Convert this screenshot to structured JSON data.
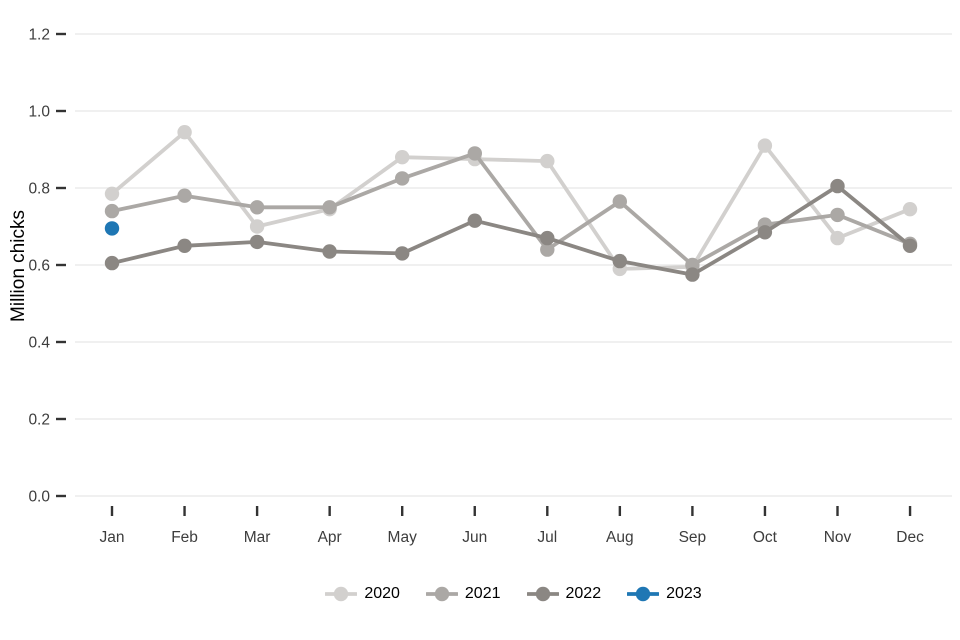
{
  "chart_data": {
    "type": "line",
    "title": "",
    "xlabel": "",
    "ylabel": "Million chicks",
    "categories": [
      "Jan",
      "Feb",
      "Mar",
      "Apr",
      "May",
      "Jun",
      "Jul",
      "Aug",
      "Sep",
      "Oct",
      "Nov",
      "Dec"
    ],
    "yticks": [
      "0.0",
      "0.2",
      "0.4",
      "0.6",
      "0.8",
      "1.0",
      "1.2"
    ],
    "ylim": [
      0,
      1.25
    ],
    "grid": "horizontal-major-only",
    "legend_position": "bottom-center",
    "marker": "filled-circle",
    "series": [
      {
        "name": "2020",
        "color": "#d2d0ce",
        "values": [
          0.785,
          0.945,
          0.7,
          0.745,
          0.88,
          0.875,
          0.87,
          0.59,
          0.595,
          0.91,
          0.67,
          0.745
        ]
      },
      {
        "name": "2021",
        "color": "#aba8a5",
        "values": [
          0.74,
          0.78,
          0.75,
          0.75,
          0.825,
          0.89,
          0.64,
          0.765,
          0.6,
          0.705,
          0.73,
          0.655
        ]
      },
      {
        "name": "2022",
        "color": "#8b8783",
        "values": [
          0.605,
          0.65,
          0.66,
          0.635,
          0.63,
          0.715,
          0.67,
          0.61,
          0.575,
          0.685,
          0.805,
          0.65
        ]
      },
      {
        "name": "2023",
        "color": "#1f77b4",
        "values": [
          0.695
        ]
      }
    ],
    "colors": {
      "background": "#ffffff",
      "gridline": "#e8e8e8",
      "tick_mark": "#333333",
      "tick_label": "#3d3d3d",
      "axis_title": "#000000"
    }
  }
}
